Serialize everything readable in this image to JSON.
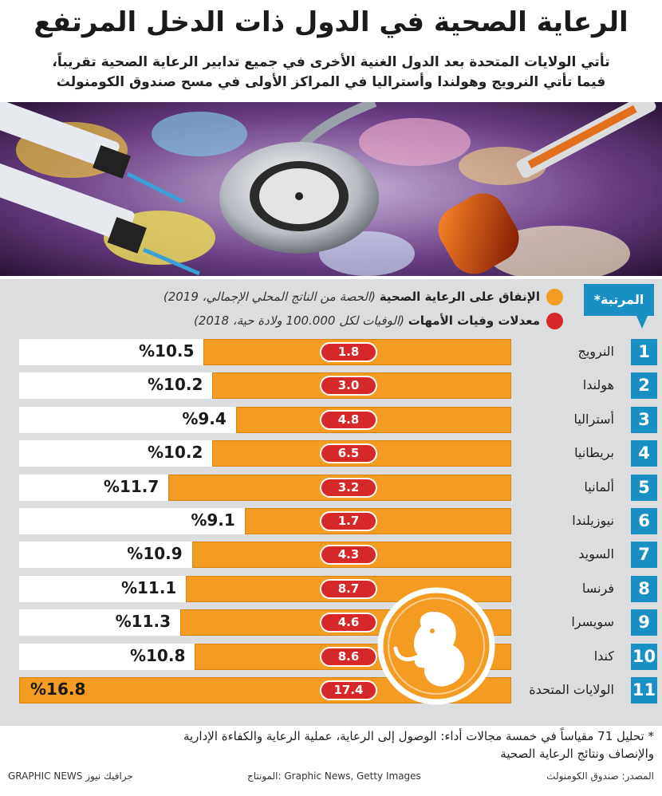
{
  "header": {
    "title": "الرعاية الصحية في الدول ذات الدخل المرتفع",
    "subtitle_line1": "تأتي الولايات المتحدة بعد الدول الغنية الأخرى في جميع تدابير الرعاية الصحية تقريباً،",
    "subtitle_line2": "فيما تأتي النرويج وهولندا وأستراليا في المراكز الأولى في مسح صندوق الكومنولث"
  },
  "legend": {
    "rank_label": "المرتبة*",
    "spending_title": "الإنفاق على الرعاية الصحية",
    "spending_note": "(الحصة من الناتج المحلي الإجمالي، 2019)",
    "maternal_title": "معدلات وفيات الأمهات",
    "maternal_note": "(الوفيات لكل 100.000 ولادة حية، 2018)"
  },
  "colors": {
    "spending": "#f49c22",
    "maternal": "#d62829",
    "rank": "#1a8fc4",
    "panel": "#dcdddf"
  },
  "chart_data": {
    "type": "bar",
    "orientation": "horizontal",
    "categories": [
      "النرويج",
      "هولندا",
      "أستراليا",
      "بريطانيا",
      "ألمانيا",
      "نيوزيلندا",
      "السويد",
      "فرنسا",
      "سويسرا",
      "كندا",
      "الولايات المتحدة"
    ],
    "ranks": [
      "1",
      "2",
      "3",
      "4",
      "5",
      "6",
      "7",
      "8",
      "9",
      "10",
      "11"
    ],
    "series": [
      {
        "name": "الإنفاق على الرعاية الصحية",
        "values": [
          10.5,
          10.2,
          9.4,
          10.2,
          11.7,
          9.1,
          10.9,
          11.1,
          11.3,
          10.8,
          16.8
        ],
        "labels": [
          "%10.5",
          "%10.2",
          "%9.4",
          "%10.2",
          "%11.7",
          "%9.1",
          "%10.9",
          "%11.1",
          "%11.3",
          "%10.8",
          "%16.8"
        ]
      },
      {
        "name": "معدلات وفيات الأمهات",
        "values": [
          1.8,
          3.0,
          4.8,
          6.5,
          3.2,
          1.7,
          4.3,
          8.7,
          4.6,
          8.6,
          17.4
        ],
        "labels": [
          "1.8",
          "3.0",
          "4.8",
          "6.5",
          "3.2",
          "1.7",
          "4.3",
          "8.7",
          "4.6",
          "8.6",
          "17.4"
        ]
      }
    ],
    "xlim": [
      0,
      16.8
    ]
  },
  "note": {
    "line1": "* تحليل 71 مقياساً في خمسة مجالات أداء: الوصول إلى الرعاية، عملية الرعاية والكفاءة الإدارية",
    "line2": "والإنصاف ونتائج الرعاية الصحية"
  },
  "footer": {
    "source": "المصدر: صندوق الكومنولث",
    "montage": "المونتاج: Graphic News, Getty Images",
    "brand": "GRAPHIC NEWS جرافيك نيوز"
  },
  "icons": {
    "photo": "medical-equipment-photo",
    "fetus": "fetus-icon"
  }
}
